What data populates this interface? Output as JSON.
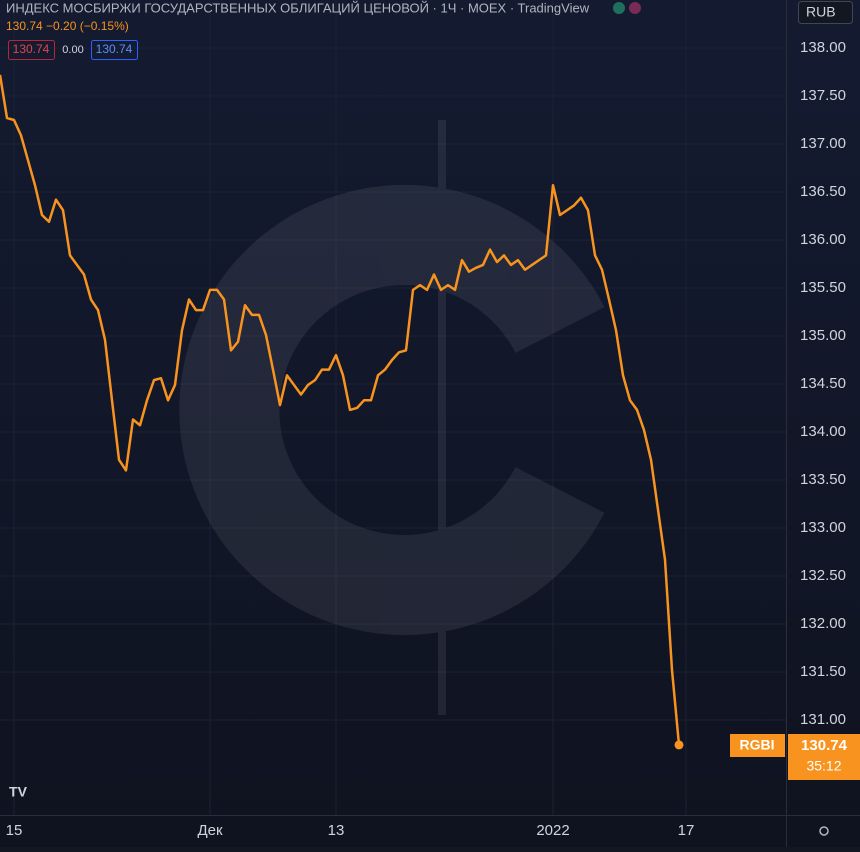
{
  "chart_data": {
    "type": "line",
    "title": "ИНДЕКС МОСБИРЖИ ГОСУДАРСТВЕННЫХ ОБЛИГАЦИЙ ЦЕНОВОЙ · 1Ч · MOEX · TradingView",
    "change_label": "130.74 −0.20 (−0.15%)",
    "indicator_values": [
      "130.74",
      "0.00",
      "130.74"
    ],
    "currency": "RUB",
    "symbol": "RGBI",
    "last_price_label": "130.74",
    "countdown": "35:12",
    "categories": [
      null,
      null,
      "15",
      null,
      null,
      null,
      null,
      null,
      null,
      null,
      null,
      null,
      null,
      null,
      null,
      null,
      null,
      null,
      null,
      null,
      null,
      null,
      null,
      null,
      null,
      null,
      null,
      null,
      null,
      null,
      "Дек",
      null,
      null,
      null,
      null,
      null,
      null,
      null,
      null,
      null,
      null,
      null,
      null,
      null,
      null,
      null,
      null,
      null,
      "13",
      null,
      null,
      null,
      null,
      null,
      null,
      null,
      null,
      null,
      null,
      null,
      null,
      null,
      null,
      null,
      null,
      null,
      null,
      null,
      null,
      null,
      null,
      null,
      null,
      null,
      null,
      null,
      null,
      null,
      null,
      "2022",
      null,
      null,
      null,
      null,
      null,
      null,
      null,
      null,
      null,
      null,
      null,
      null,
      null,
      null,
      null,
      null,
      null,
      null,
      "17",
      null,
      null,
      null,
      null,
      null,
      null,
      null,
      null,
      null,
      null,
      null,
      null,
      null,
      null
    ],
    "series": [
      {
        "name": "RGBI",
        "color": "#f7931e",
        "values": [
          137.72,
          137.27,
          137.25,
          137.09,
          136.83,
          136.57,
          136.26,
          136.19,
          136.42,
          136.31,
          135.84,
          135.74,
          135.64,
          135.38,
          135.27,
          134.96,
          134.33,
          133.71,
          133.6,
          134.13,
          134.07,
          134.33,
          134.54,
          134.56,
          134.33,
          134.49,
          135.06,
          135.38,
          135.27,
          135.27,
          135.48,
          135.48,
          135.38,
          134.85,
          134.94,
          135.32,
          135.22,
          135.22,
          135.01,
          134.65,
          134.28,
          134.59,
          134.49,
          134.39,
          134.49,
          134.54,
          134.65,
          134.65,
          134.8,
          134.59,
          134.23,
          134.25,
          134.33,
          134.33,
          134.59,
          134.65,
          134.75,
          134.83,
          134.85,
          135.48,
          135.53,
          135.48,
          135.64,
          135.48,
          135.53,
          135.48,
          135.79,
          135.67,
          135.71,
          135.74,
          135.9,
          135.77,
          135.84,
          135.74,
          135.79,
          135.69,
          135.74,
          135.79,
          135.84,
          136.57,
          136.26,
          136.31,
          136.36,
          136.44,
          136.31,
          135.84,
          135.69,
          135.38,
          135.06,
          134.59,
          134.33,
          134.23,
          134.02,
          133.71,
          133.19,
          132.67,
          131.52,
          130.74,
          null,
          null,
          null,
          null,
          null,
          null,
          null,
          null,
          null,
          null,
          null,
          null,
          null,
          null,
          null
        ]
      }
    ],
    "ylim": [
      130.01,
      138.5
    ],
    "yticks": [
      {
        "value": 131,
        "label": "131.00"
      },
      {
        "value": 131.5,
        "label": "131.50"
      },
      {
        "value": 132,
        "label": "132.00"
      },
      {
        "value": 132.5,
        "label": "132.50"
      },
      {
        "value": 133,
        "label": "133.00"
      },
      {
        "value": 133.5,
        "label": "133.50"
      },
      {
        "value": 134,
        "label": "134.00"
      },
      {
        "value": 134.5,
        "label": "134.50"
      },
      {
        "value": 135,
        "label": "135.00"
      },
      {
        "value": 135.5,
        "label": "135.50"
      },
      {
        "value": 136,
        "label": "136.00"
      },
      {
        "value": 136.5,
        "label": "136.50"
      },
      {
        "value": 137,
        "label": "137.00"
      },
      {
        "value": 137.5,
        "label": "137.50"
      },
      {
        "value": 138,
        "label": "138.00"
      }
    ],
    "grid": true
  }
}
